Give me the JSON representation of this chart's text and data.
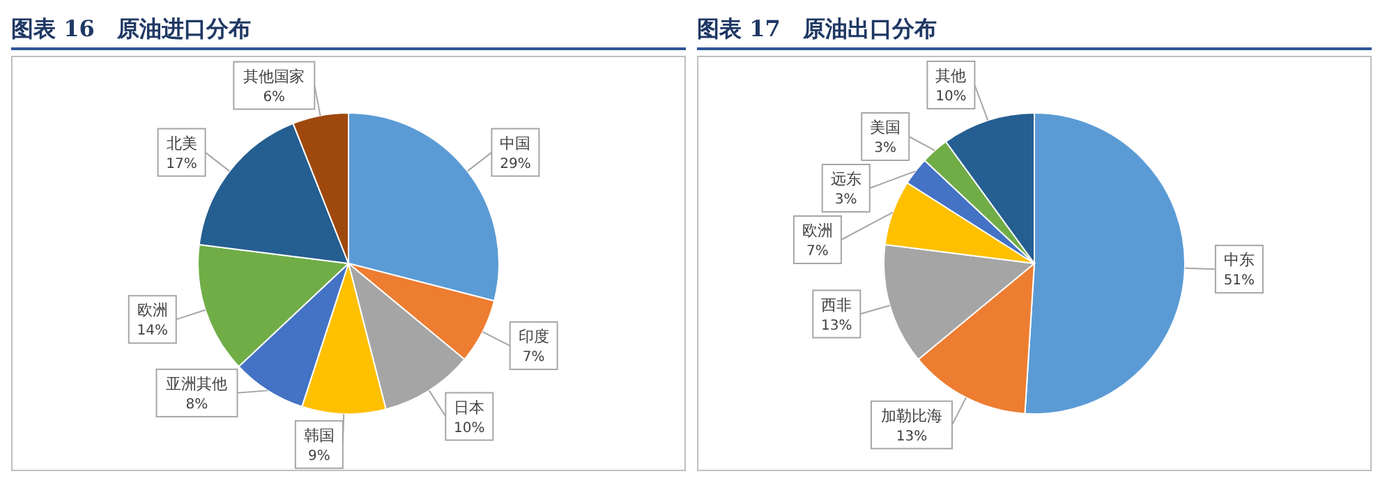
{
  "chart_data": [
    {
      "type": "pie",
      "title": "图表 16　原油进口分布",
      "categories": [
        "中国",
        "印度",
        "日本",
        "韩国",
        "亚洲其他",
        "欧洲",
        "北美",
        "其他国家"
      ],
      "values": [
        29,
        7,
        10,
        9,
        8,
        14,
        17,
        6
      ],
      "value_labels": [
        "29%",
        "7%",
        "10%",
        "9%",
        "8%",
        "14%",
        "17%",
        "6%"
      ],
      "colors": [
        "#5b9bd5",
        "#ed7d31",
        "#a5a5a5",
        "#ffc000",
        "#4472c4",
        "#70ad47",
        "#255e91",
        "#9e480e"
      ],
      "legend": false
    },
    {
      "type": "pie",
      "title": "图表 17　原油出口分布",
      "categories": [
        "中东",
        "加勒比海",
        "西非",
        "欧洲",
        "远东",
        "美国",
        "其他"
      ],
      "values": [
        51,
        13,
        13,
        7,
        3,
        3,
        10
      ],
      "value_labels": [
        "51%",
        "13%",
        "13%",
        "7%",
        "3%",
        "3%",
        "10%"
      ],
      "colors": [
        "#5b9bd5",
        "#ed7d31",
        "#a5a5a5",
        "#ffc000",
        "#4472c4",
        "#70ad47",
        "#255e91"
      ],
      "legend": false
    }
  ]
}
